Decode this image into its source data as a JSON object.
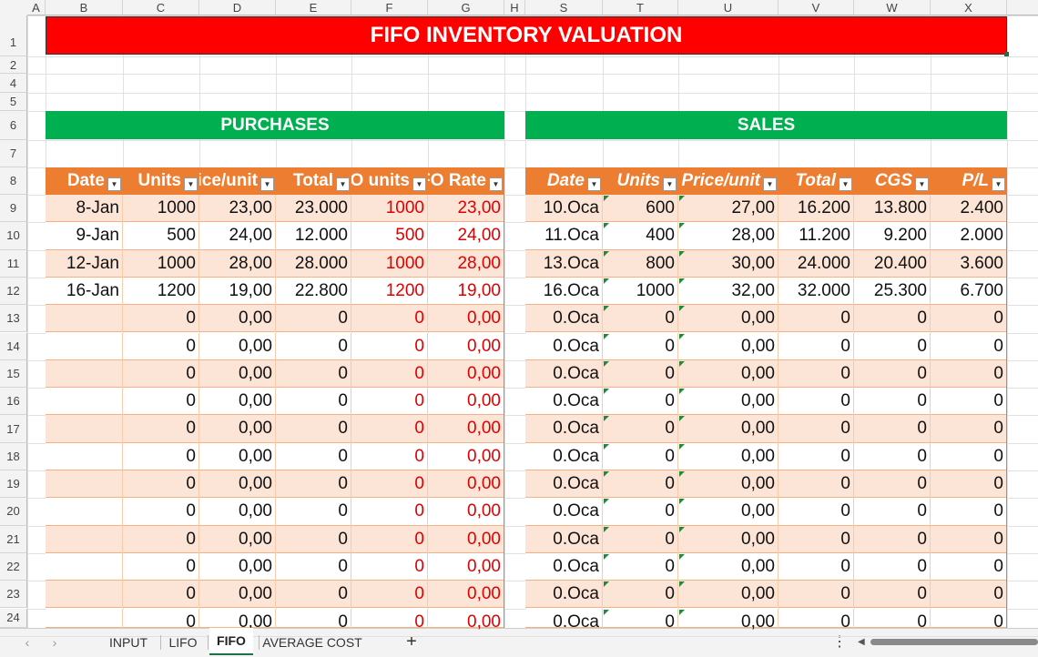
{
  "sheet": {
    "title": "FIFO INVENTORY VALUATION",
    "columns": [
      "A",
      "B",
      "C",
      "D",
      "E",
      "F",
      "G",
      "H",
      "S",
      "T",
      "U",
      "V",
      "W",
      "X"
    ],
    "rows": [
      "1",
      "2",
      "4",
      "5",
      "6",
      "7",
      "8",
      "9",
      "10",
      "11",
      "12",
      "13",
      "14",
      "15",
      "16",
      "17",
      "18",
      "19",
      "20",
      "21",
      "22",
      "23",
      "24"
    ],
    "purchases": {
      "title": "PURCHASES",
      "headers": [
        "Date",
        "Units",
        "Price/unit",
        "Total",
        "FIFO units",
        "FIFO Rate"
      ],
      "rows": [
        [
          "8-Jan",
          "1000",
          "23,00",
          "23.000",
          "1000",
          "23,00"
        ],
        [
          "9-Jan",
          "500",
          "24,00",
          "12.000",
          "500",
          "24,00"
        ],
        [
          "12-Jan",
          "1000",
          "28,00",
          "28.000",
          "1000",
          "28,00"
        ],
        [
          "16-Jan",
          "1200",
          "19,00",
          "22.800",
          "1200",
          "19,00"
        ],
        [
          null,
          "0",
          "0,00",
          "0",
          "0",
          "0,00"
        ],
        [
          null,
          "0",
          "0,00",
          "0",
          "0",
          "0,00"
        ],
        [
          null,
          "0",
          "0,00",
          "0",
          "0",
          "0,00"
        ],
        [
          null,
          "0",
          "0,00",
          "0",
          "0",
          "0,00"
        ],
        [
          null,
          "0",
          "0,00",
          "0",
          "0",
          "0,00"
        ],
        [
          null,
          "0",
          "0,00",
          "0",
          "0",
          "0,00"
        ],
        [
          null,
          "0",
          "0,00",
          "0",
          "0",
          "0,00"
        ],
        [
          null,
          "0",
          "0,00",
          "0",
          "0",
          "0,00"
        ],
        [
          null,
          "0",
          "0,00",
          "0",
          "0",
          "0,00"
        ],
        [
          null,
          "0",
          "0,00",
          "0",
          "0",
          "0,00"
        ],
        [
          null,
          "0",
          "0,00",
          "0",
          "0",
          "0,00"
        ],
        [
          null,
          "0",
          "0,00",
          "0",
          "0",
          "0,00"
        ]
      ]
    },
    "sales": {
      "title": "SALES",
      "headers": [
        "Date",
        "Units",
        "Price/unit",
        "Total",
        "CGS",
        "P/L"
      ],
      "rows": [
        [
          "10.Oca",
          "600",
          "27,00",
          "16.200",
          "13.800",
          "2.400"
        ],
        [
          "11.Oca",
          "400",
          "28,00",
          "11.200",
          "9.200",
          "2.000"
        ],
        [
          "13.Oca",
          "800",
          "30,00",
          "24.000",
          "20.400",
          "3.600"
        ],
        [
          "16.Oca",
          "1000",
          "32,00",
          "32.000",
          "25.300",
          "6.700"
        ],
        [
          "0.Oca",
          "0",
          "0,00",
          "0",
          "0",
          "0"
        ],
        [
          "0.Oca",
          "0",
          "0,00",
          "0",
          "0",
          "0"
        ],
        [
          "0.Oca",
          "0",
          "0,00",
          "0",
          "0",
          "0"
        ],
        [
          "0.Oca",
          "0",
          "0,00",
          "0",
          "0",
          "0"
        ],
        [
          "0.Oca",
          "0",
          "0,00",
          "0",
          "0",
          "0"
        ],
        [
          "0.Oca",
          "0",
          "0,00",
          "0",
          "0",
          "0"
        ],
        [
          "0.Oca",
          "0",
          "0,00",
          "0",
          "0",
          "0"
        ],
        [
          "0.Oca",
          "0",
          "0,00",
          "0",
          "0",
          "0"
        ],
        [
          "0.Oca",
          "0",
          "0,00",
          "0",
          "0",
          "0"
        ],
        [
          "0.Oca",
          "0",
          "0,00",
          "0",
          "0",
          "0"
        ],
        [
          "0.Oca",
          "0",
          "0,00",
          "0",
          "0",
          "0"
        ],
        [
          "0.Oca",
          "0",
          "0,00",
          "0",
          "0",
          "0"
        ]
      ]
    },
    "tabs": [
      "INPUT",
      "LIFO",
      "FIFO",
      "AVERAGE COST"
    ]
  }
}
